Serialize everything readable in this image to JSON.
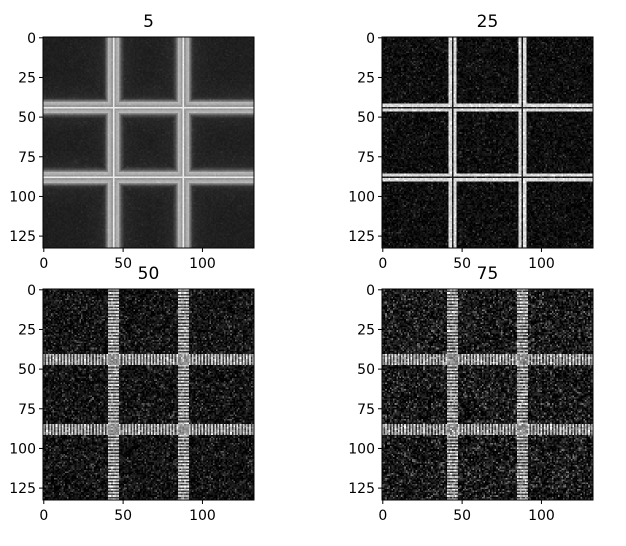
{
  "chart_data": [
    {
      "type": "heatmap",
      "title": "5",
      "colormap": "gray",
      "image_size": [
        133,
        133
      ],
      "grid_lines": [
        44,
        88
      ],
      "pattern": "smooth",
      "line_brightness": 0.92,
      "halo_brightness": 0.78,
      "background_brightness": 0.12,
      "noise": 0.02,
      "xticks": [
        "0",
        "50",
        "100"
      ],
      "yticks": [
        "0",
        "25",
        "50",
        "75",
        "100",
        "125"
      ]
    },
    {
      "type": "heatmap",
      "title": "25",
      "colormap": "gray",
      "image_size": [
        133,
        133
      ],
      "grid_lines": [
        44,
        88
      ],
      "pattern": "double-line",
      "line_brightness": 0.85,
      "background_brightness": 0.05,
      "noise": 0.07,
      "xticks": [
        "0",
        "50",
        "100"
      ],
      "yticks": [
        "0",
        "25",
        "50",
        "75",
        "100",
        "125"
      ]
    },
    {
      "type": "heatmap",
      "title": "50",
      "colormap": "gray",
      "image_size": [
        133,
        133
      ],
      "grid_lines": [
        44,
        88
      ],
      "pattern": "hatched",
      "line_brightness": 0.78,
      "background_brightness": 0.06,
      "noise": 0.11,
      "xticks": [
        "0",
        "50",
        "100"
      ],
      "yticks": [
        "0",
        "25",
        "50",
        "75",
        "100",
        "125"
      ]
    },
    {
      "type": "heatmap",
      "title": "75",
      "colormap": "gray",
      "image_size": [
        133,
        133
      ],
      "grid_lines": [
        44,
        88
      ],
      "pattern": "hatched",
      "line_brightness": 0.75,
      "background_brightness": 0.07,
      "noise": 0.14,
      "xticks": [
        "0",
        "50",
        "100"
      ],
      "yticks": [
        "0",
        "25",
        "50",
        "75",
        "100",
        "125"
      ]
    }
  ]
}
